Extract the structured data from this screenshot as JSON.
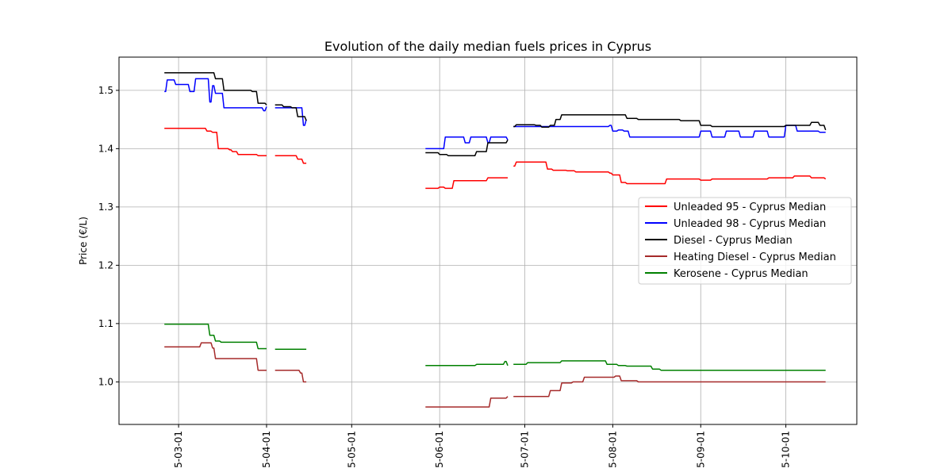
{
  "chart_data": {
    "type": "line",
    "title": "Evolution of the daily median fuels prices in Cyprus",
    "xlabel": "",
    "ylabel": "Price (€/L)",
    "x_ticks": [
      "2025-03-01",
      "2025-04-01",
      "2025-05-01",
      "2025-06-01",
      "2025-07-01",
      "2025-08-01",
      "2025-09-01",
      "2025-10-01"
    ],
    "x_tick_labels": [
      "5-03-01",
      "5-04-01",
      "5-05-01",
      "5-06-01",
      "5-07-01",
      "5-08-01",
      "5-09-01",
      "5-10-01"
    ],
    "xlim": [
      "2025-02-08",
      "2025-10-26"
    ],
    "y_ticks": [
      1.0,
      1.1,
      1.2,
      1.3,
      1.4,
      1.5
    ],
    "y_tick_labels": [
      "1.0",
      "1.1",
      "1.2",
      "1.3",
      "1.4",
      "1.5"
    ],
    "ylim": [
      0.927,
      1.557
    ],
    "grid": true,
    "legend_position": "center-right",
    "series": [
      {
        "name": "Unleaded 95 - Cyprus Median",
        "color": "#ff0000",
        "segments": [
          [
            [
              "2025-02-24",
              1.435
            ],
            [
              "2025-03-10",
              1.435
            ],
            [
              "2025-03-11",
              1.43
            ],
            [
              "2025-03-13",
              1.428
            ],
            [
              "2025-03-15",
              1.4
            ],
            [
              "2025-03-19",
              1.398
            ],
            [
              "2025-03-20",
              1.395
            ],
            [
              "2025-03-22",
              1.39
            ],
            [
              "2025-03-29",
              1.388
            ],
            [
              "2025-04-01",
              1.388
            ]
          ],
          [
            [
              "2025-04-04",
              1.388
            ],
            [
              "2025-04-11",
              1.388
            ],
            [
              "2025-04-12",
              1.382
            ],
            [
              "2025-04-14",
              1.375
            ],
            [
              "2025-04-15",
              1.375
            ]
          ],
          [
            [
              "2025-05-27",
              1.332
            ],
            [
              "2025-05-31",
              1.332
            ],
            [
              "2025-06-01",
              1.334
            ],
            [
              "2025-06-03",
              1.332
            ],
            [
              "2025-06-06",
              1.345
            ],
            [
              "2025-06-16",
              1.345
            ],
            [
              "2025-06-18",
              1.35
            ],
            [
              "2025-06-25",
              1.35
            ]
          ],
          [
            [
              "2025-06-27",
              1.37
            ],
            [
              "2025-06-28",
              1.377
            ],
            [
              "2025-07-08",
              1.377
            ],
            [
              "2025-07-09",
              1.365
            ],
            [
              "2025-07-11",
              1.363
            ],
            [
              "2025-07-16",
              1.362
            ],
            [
              "2025-07-19",
              1.36
            ],
            [
              "2025-07-31",
              1.358
            ],
            [
              "2025-08-01",
              1.355
            ],
            [
              "2025-08-04",
              1.342
            ],
            [
              "2025-08-06",
              1.34
            ],
            [
              "2025-08-18",
              1.34
            ],
            [
              "2025-08-20",
              1.348
            ],
            [
              "2025-08-31",
              1.348
            ],
            [
              "2025-09-01",
              1.346
            ],
            [
              "2025-09-05",
              1.348
            ],
            [
              "2025-09-25",
              1.35
            ],
            [
              "2025-10-04",
              1.353
            ],
            [
              "2025-10-10",
              1.35
            ],
            [
              "2025-10-15",
              1.348
            ]
          ]
        ]
      },
      {
        "name": "Unleaded 98 - Cyprus Median",
        "color": "#0000ff",
        "segments": [
          [
            [
              "2025-02-24",
              1.498
            ],
            [
              "2025-02-25",
              1.518
            ],
            [
              "2025-02-28",
              1.51
            ],
            [
              "2025-03-04",
              1.51
            ],
            [
              "2025-03-05",
              1.498
            ],
            [
              "2025-03-07",
              1.52
            ],
            [
              "2025-03-11",
              1.52
            ],
            [
              "2025-03-12",
              1.48
            ],
            [
              "2025-03-13",
              1.508
            ],
            [
              "2025-03-14",
              1.495
            ],
            [
              "2025-03-16",
              1.495
            ],
            [
              "2025-03-17",
              1.47
            ],
            [
              "2025-03-30",
              1.47
            ],
            [
              "2025-03-31",
              1.465
            ],
            [
              "2025-04-01",
              1.472
            ]
          ],
          [
            [
              "2025-04-04",
              1.47
            ],
            [
              "2025-04-13",
              1.47
            ],
            [
              "2025-04-14",
              1.44
            ],
            [
              "2025-04-15",
              1.45
            ]
          ],
          [
            [
              "2025-05-27",
              1.4
            ],
            [
              "2025-06-02",
              1.4
            ],
            [
              "2025-06-03",
              1.42
            ],
            [
              "2025-06-08",
              1.42
            ],
            [
              "2025-06-10",
              1.41
            ],
            [
              "2025-06-12",
              1.42
            ],
            [
              "2025-06-18",
              1.41
            ],
            [
              "2025-06-19",
              1.42
            ],
            [
              "2025-06-25",
              1.415
            ]
          ],
          [
            [
              "2025-06-27",
              1.438
            ],
            [
              "2025-07-31",
              1.44
            ],
            [
              "2025-08-01",
              1.43
            ],
            [
              "2025-08-03",
              1.432
            ],
            [
              "2025-08-05",
              1.43
            ],
            [
              "2025-08-07",
              1.42
            ],
            [
              "2025-08-27",
              1.42
            ],
            [
              "2025-09-01",
              1.43
            ],
            [
              "2025-09-05",
              1.42
            ],
            [
              "2025-09-10",
              1.43
            ],
            [
              "2025-09-15",
              1.42
            ],
            [
              "2025-09-20",
              1.43
            ],
            [
              "2025-09-25",
              1.42
            ],
            [
              "2025-10-01",
              1.44
            ],
            [
              "2025-10-05",
              1.43
            ],
            [
              "2025-10-13",
              1.428
            ],
            [
              "2025-10-15",
              1.428
            ]
          ]
        ]
      },
      {
        "name": "Diesel - Cyprus Median",
        "color": "#000000",
        "segments": [
          [
            [
              "2025-02-24",
              1.53
            ],
            [
              "2025-03-12",
              1.53
            ],
            [
              "2025-03-14",
              1.52
            ],
            [
              "2025-03-17",
              1.5
            ],
            [
              "2025-03-27",
              1.498
            ],
            [
              "2025-03-29",
              1.478
            ],
            [
              "2025-04-01",
              1.475
            ]
          ],
          [
            [
              "2025-04-04",
              1.475
            ],
            [
              "2025-04-07",
              1.472
            ],
            [
              "2025-04-10",
              1.47
            ],
            [
              "2025-04-12",
              1.455
            ],
            [
              "2025-04-15",
              1.448
            ]
          ],
          [
            [
              "2025-05-27",
              1.393
            ],
            [
              "2025-06-01",
              1.39
            ],
            [
              "2025-06-04",
              1.388
            ],
            [
              "2025-06-12",
              1.388
            ],
            [
              "2025-06-14",
              1.395
            ],
            [
              "2025-06-18",
              1.41
            ],
            [
              "2025-06-25",
              1.415
            ]
          ],
          [
            [
              "2025-06-27",
              1.438
            ],
            [
              "2025-06-28",
              1.441
            ],
            [
              "2025-07-05",
              1.44
            ],
            [
              "2025-07-07",
              1.437
            ],
            [
              "2025-07-10",
              1.44
            ],
            [
              "2025-07-12",
              1.45
            ],
            [
              "2025-07-14",
              1.458
            ],
            [
              "2025-07-22",
              1.458
            ],
            [
              "2025-08-01",
              1.458
            ],
            [
              "2025-08-06",
              1.452
            ],
            [
              "2025-08-10",
              1.45
            ],
            [
              "2025-08-25",
              1.448
            ],
            [
              "2025-09-01",
              1.44
            ],
            [
              "2025-09-05",
              1.438
            ],
            [
              "2025-09-23",
              1.438
            ],
            [
              "2025-10-01",
              1.44
            ],
            [
              "2025-10-10",
              1.445
            ],
            [
              "2025-10-13",
              1.44
            ],
            [
              "2025-10-15",
              1.432
            ]
          ]
        ]
      },
      {
        "name": "Heating Diesel - Cyprus Median",
        "color": "#a52a2a",
        "segments": [
          [
            [
              "2025-02-24",
              1.06
            ],
            [
              "2025-03-07",
              1.06
            ],
            [
              "2025-03-09",
              1.067
            ],
            [
              "2025-03-11",
              1.067
            ],
            [
              "2025-03-13",
              1.058
            ],
            [
              "2025-03-14",
              1.04
            ],
            [
              "2025-03-28",
              1.04
            ],
            [
              "2025-03-29",
              1.02
            ],
            [
              "2025-04-01",
              1.02
            ]
          ],
          [
            [
              "2025-04-04",
              1.02
            ],
            [
              "2025-04-12",
              1.02
            ],
            [
              "2025-04-13",
              1.015
            ],
            [
              "2025-04-14",
              1.0
            ],
            [
              "2025-04-15",
              1.0
            ]
          ],
          [
            [
              "2025-05-27",
              0.957
            ],
            [
              "2025-06-18",
              0.957
            ],
            [
              "2025-06-19",
              0.972
            ],
            [
              "2025-06-25",
              0.975
            ]
          ],
          [
            [
              "2025-06-27",
              0.975
            ],
            [
              "2025-07-08",
              0.975
            ],
            [
              "2025-07-10",
              0.985
            ],
            [
              "2025-07-14",
              0.998
            ],
            [
              "2025-07-18",
              1.0
            ],
            [
              "2025-07-22",
              1.008
            ],
            [
              "2025-07-31",
              1.008
            ],
            [
              "2025-08-02",
              1.01
            ],
            [
              "2025-08-04",
              1.002
            ],
            [
              "2025-08-10",
              1.0
            ],
            [
              "2025-08-31",
              1.0
            ],
            [
              "2025-10-15",
              1.0
            ]
          ]
        ]
      },
      {
        "name": "Kerosene - Cyprus Median",
        "color": "#008000",
        "segments": [
          [
            [
              "2025-02-24",
              1.099
            ],
            [
              "2025-03-11",
              1.099
            ],
            [
              "2025-03-12",
              1.08
            ],
            [
              "2025-03-14",
              1.07
            ],
            [
              "2025-03-16",
              1.068
            ],
            [
              "2025-03-28",
              1.068
            ],
            [
              "2025-03-29",
              1.057
            ],
            [
              "2025-04-01",
              1.057
            ]
          ],
          [
            [
              "2025-04-04",
              1.056
            ],
            [
              "2025-04-15",
              1.056
            ]
          ],
          [
            [
              "2025-05-27",
              1.028
            ],
            [
              "2025-06-12",
              1.028
            ],
            [
              "2025-06-14",
              1.03
            ],
            [
              "2025-06-22",
              1.03
            ],
            [
              "2025-06-24",
              1.035
            ],
            [
              "2025-06-25",
              1.028
            ]
          ],
          [
            [
              "2025-06-27",
              1.03
            ],
            [
              "2025-07-01",
              1.03
            ],
            [
              "2025-07-02",
              1.033
            ],
            [
              "2025-07-13",
              1.033
            ],
            [
              "2025-07-14",
              1.036
            ],
            [
              "2025-07-29",
              1.036
            ],
            [
              "2025-07-30",
              1.03
            ],
            [
              "2025-08-03",
              1.028
            ],
            [
              "2025-08-06",
              1.027
            ],
            [
              "2025-08-13",
              1.027
            ],
            [
              "2025-08-15",
              1.022
            ],
            [
              "2025-08-18",
              1.02
            ],
            [
              "2025-10-15",
              1.02
            ]
          ]
        ]
      }
    ]
  }
}
